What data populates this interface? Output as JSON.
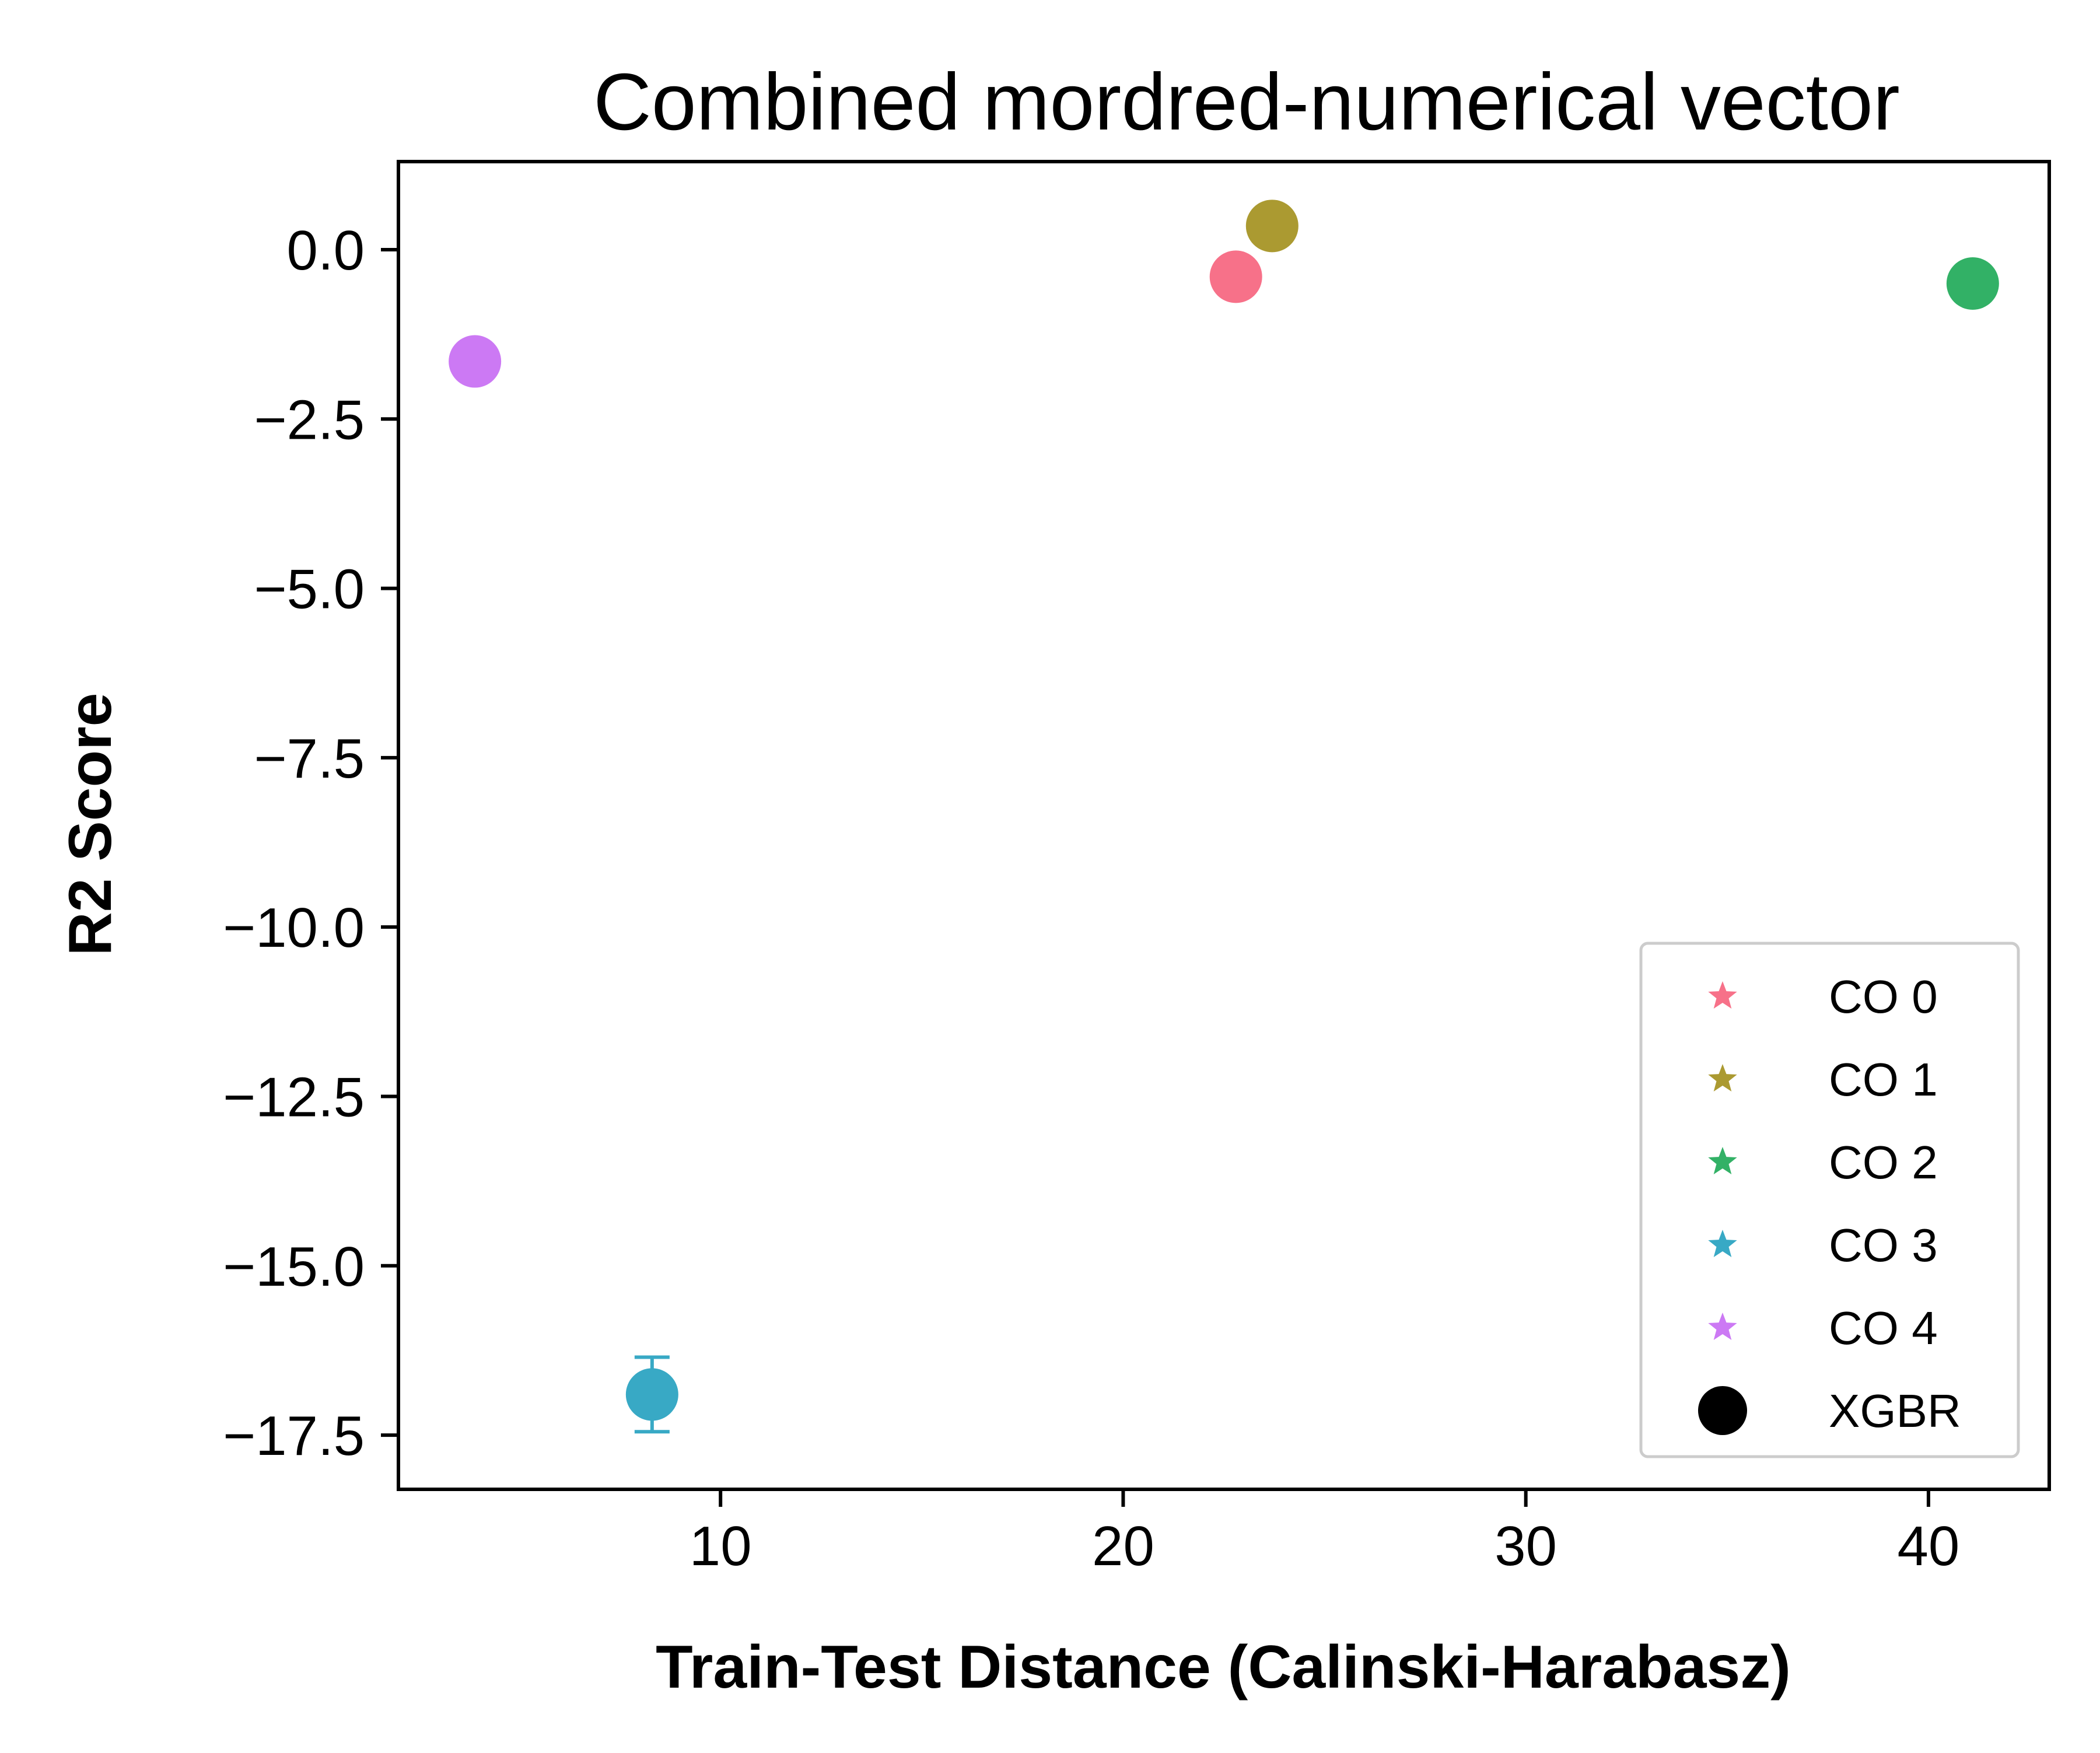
{
  "chart_data": {
    "type": "scatter",
    "title": "Combined mordred-numerical vector",
    "xlabel": "Train-Test Distance (Calinski-Harabasz)",
    "ylabel": "R2 Score",
    "xlim": [
      2.0,
      43.0
    ],
    "ylim": [
      -18.3,
      1.3
    ],
    "xticks": [
      10,
      20,
      30,
      40
    ],
    "xtick_labels": [
      "10",
      "20",
      "30",
      "40"
    ],
    "yticks": [
      0.0,
      -2.5,
      -5.0,
      -7.5,
      -10.0,
      -12.5,
      -15.0,
      -17.5
    ],
    "ytick_labels": [
      "0.0",
      "−2.5",
      "−5.0",
      "−7.5",
      "−10.0",
      "−12.5",
      "−15.0",
      "−17.5"
    ],
    "grid": false,
    "legend_position": "lower-right",
    "series": [
      {
        "name": "CO 0",
        "color": "#f77189",
        "x": 22.8,
        "y": -0.4,
        "yerr": 0.1
      },
      {
        "name": "CO 1",
        "color": "#ab9a31",
        "x": 23.7,
        "y": 0.35,
        "yerr": 0.1
      },
      {
        "name": "CO 2",
        "color": "#32b166",
        "x": 41.1,
        "y": -0.5,
        "yerr": 0.1
      },
      {
        "name": "CO 3",
        "color": "#38a9c5",
        "x": 8.3,
        "y": -16.9,
        "yerr": 0.55
      },
      {
        "name": "CO 4",
        "color": "#cc79f4",
        "x": 3.9,
        "y": -1.65,
        "yerr": 0.1
      }
    ],
    "marker_legend": [
      {
        "name": "XGBR",
        "marker": "circle",
        "color": "#000000"
      }
    ]
  }
}
